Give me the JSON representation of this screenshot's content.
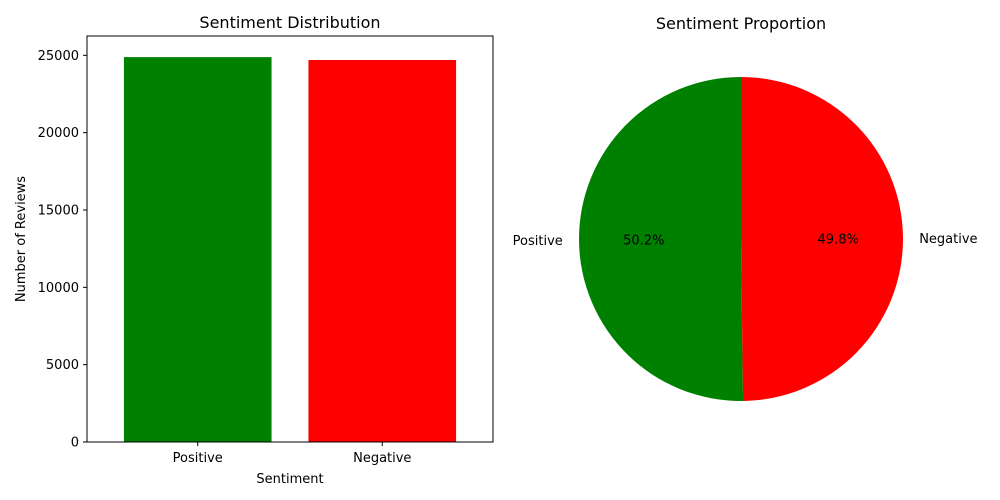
{
  "chart_data": [
    {
      "type": "bar",
      "title": "Sentiment Distribution",
      "xlabel": "Sentiment",
      "ylabel": "Number of Reviews",
      "categories": [
        "Positive",
        "Negative"
      ],
      "values": [
        24884,
        24698
      ],
      "colors": [
        "#008000",
        "#ff0000"
      ],
      "ylim": [
        0,
        26250
      ],
      "yticks": [
        0,
        5000,
        10000,
        15000,
        20000,
        25000
      ],
      "grid": false
    },
    {
      "type": "pie",
      "title": "Sentiment Proportion",
      "labels": [
        "Positive",
        "Negative"
      ],
      "values": [
        50.2,
        49.8
      ],
      "autopct": [
        "50.2%",
        "49.8%"
      ],
      "colors": [
        "#008000",
        "#ff0000"
      ],
      "start_angle_deg": 90
    }
  ]
}
